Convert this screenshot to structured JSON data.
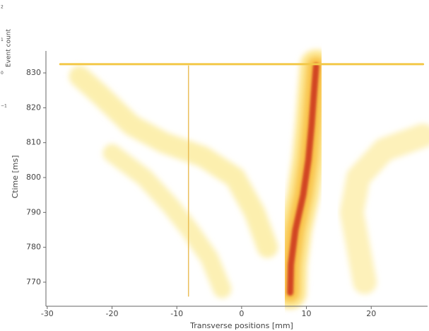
{
  "chart_data": {
    "type": "density",
    "xlabel": "Transverse positions [mm]",
    "ylabel": "Ctime [ms]",
    "xlim": [
      -30.2,
      28.7
    ],
    "ylim": [
      763.1,
      836.3
    ],
    "xticks": [
      -30,
      -20,
      -10,
      0,
      10,
      20
    ],
    "yticks": [
      770,
      780,
      790,
      800,
      810,
      820,
      830
    ],
    "colorbar": {
      "label": "Event count",
      "ticks": [
        2,
        1,
        0,
        {
          "value": -1,
          "label": "−1"
        }
      ]
    },
    "series": [
      {
        "color": "#fde27a",
        "x": [
          7.5,
          7.6,
          8.3,
          9.5,
          10.3,
          10.8,
          11.2,
          11.5
        ],
        "values": [
          767,
          775,
          785,
          795,
          805,
          815,
          825,
          832
        ]
      },
      {
        "color": "#f7b733",
        "x": [
          7.5,
          7.6,
          8.3,
          9.5,
          10.3,
          10.8,
          11.2,
          11.5
        ],
        "values": [
          767,
          775,
          785,
          795,
          805,
          815,
          825,
          832
        ]
      },
      {
        "color": "#c8281c",
        "x": [
          7.5,
          7.6,
          8.3,
          9.5,
          10.3,
          10.8,
          11.2,
          11.5
        ],
        "values": [
          767,
          775,
          785,
          795,
          805,
          815,
          825,
          832
        ]
      },
      {
        "color": "#fbe88c",
        "x": [
          -25,
          -22,
          -17,
          -12,
          -6,
          -1,
          2,
          4
        ],
        "values": [
          829,
          824,
          815,
          810,
          806,
          800,
          790,
          780
        ]
      },
      {
        "color": "#fbe88c",
        "x": [
          -20,
          -15,
          -11,
          -8,
          -5,
          -3
        ],
        "values": [
          807,
          800,
          792,
          785,
          777,
          768
        ]
      },
      {
        "color": "#fbe88c",
        "x": [
          28,
          22,
          18,
          17,
          18,
          19
        ],
        "values": [
          812,
          808,
          800,
          790,
          780,
          770
        ]
      },
      {
        "color": "#f3c94a",
        "x": [
          -28,
          28
        ],
        "values": [
          832.5,
          832.5
        ]
      },
      {
        "color": "#e8b84a",
        "x": [
          -8.2,
          -8.2
        ],
        "values": [
          766,
          832
        ]
      }
    ]
  }
}
